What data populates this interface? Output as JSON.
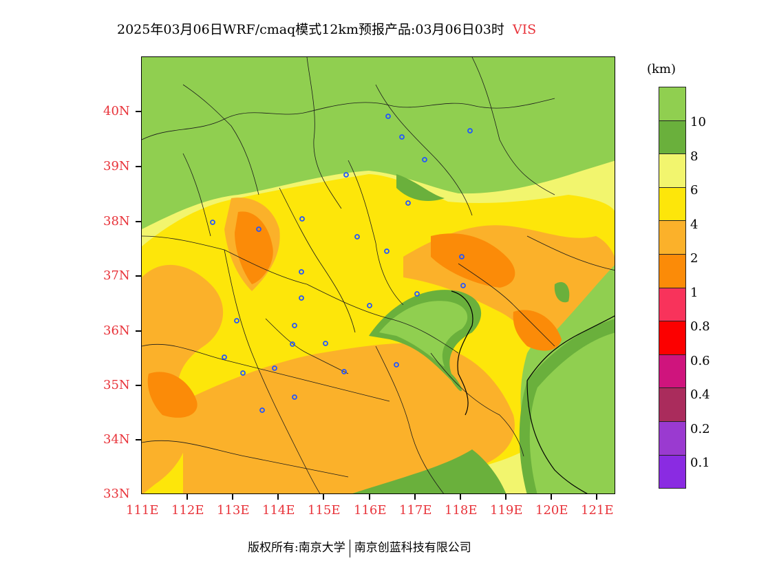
{
  "title": {
    "text": "2025年03月06日WRF/cmaq模式12km预报产品:03月06日03时",
    "variable": "VIS"
  },
  "colorbar": {
    "unit": "(km)",
    "labels": [
      "10",
      "8",
      "6",
      "4",
      "2",
      "1",
      "0.8",
      "0.6",
      "0.4",
      "0.2",
      "0.1"
    ],
    "colors": [
      "#90cf50",
      "#6ab03c",
      "#f2f56e",
      "#fde60a",
      "#fbb12a",
      "#fb8b08",
      "#f8335b",
      "#fc0000",
      "#cf147d",
      "#aa2c5c",
      "#9a3ad0",
      "#8a2be2"
    ]
  },
  "axes": {
    "lat_labels": [
      "40N",
      "39N",
      "38N",
      "37N",
      "36N",
      "35N",
      "34N",
      "33N"
    ],
    "lon_labels": [
      "111E",
      "112E",
      "113E",
      "114E",
      "115E",
      "116E",
      "117E",
      "118E",
      "119E",
      "120E",
      "121E"
    ],
    "lat_range": [
      33,
      41
    ],
    "lon_range": [
      111,
      121.4
    ],
    "label_color": "#e8333a"
  },
  "map_colors": {
    "sea": "#90cf50",
    "dark_green": "#6ab03c",
    "light_yellow": "#f2f56e",
    "yellow": "#fde60a",
    "light_orange": "#fbb12a",
    "orange": "#fb8b08"
  },
  "cities_icon": "city-marker-icon",
  "footer": {
    "left": "版权所有:南京大学",
    "right": "南京创蓝科技有限公司"
  }
}
